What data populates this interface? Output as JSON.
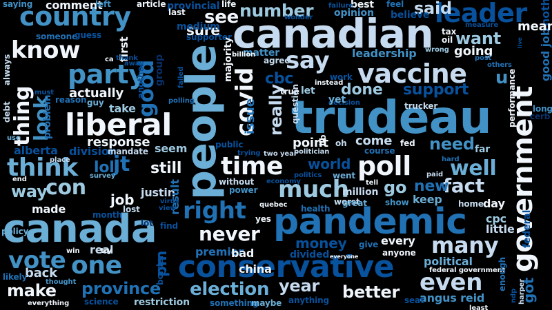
{
  "palette": {
    "background": "#000000",
    "c1": "#f0f6fc",
    "c2": "#c6dbef",
    "c3": "#9ecae1",
    "c4": "#6baed6",
    "c5": "#4292c6",
    "c6": "#2171b5",
    "c7": "#08519c",
    "c8": "#08306b"
  },
  "words": [
    {
      "text": "trudeau",
      "color": "c5",
      "orientation": "horizontal"
    },
    {
      "text": "people",
      "color": "c4",
      "orientation": "vertical"
    },
    {
      "text": "canadian",
      "color": "c2",
      "orientation": "horizontal"
    },
    {
      "text": "canada",
      "color": "c4",
      "orientation": "horizontal"
    },
    {
      "text": "pandemic",
      "color": "c6",
      "orientation": "horizontal"
    },
    {
      "text": "government",
      "color": "c1",
      "orientation": "vertical"
    },
    {
      "text": "conservative",
      "color": "c7",
      "orientation": "horizontal"
    },
    {
      "text": "liberal",
      "color": "c1",
      "orientation": "horizontal"
    },
    {
      "text": "country",
      "color": "c5",
      "orientation": "horizontal"
    },
    {
      "text": "vaccine",
      "color": "c2",
      "orientation": "horizontal"
    },
    {
      "text": "leader",
      "color": "c7",
      "orientation": "horizontal"
    },
    {
      "text": "party",
      "color": "c5",
      "orientation": "horizontal"
    },
    {
      "text": "know",
      "color": "c1",
      "orientation": "horizontal"
    },
    {
      "text": "poll",
      "color": "c1",
      "orientation": "horizontal"
    },
    {
      "text": "think",
      "color": "c4",
      "orientation": "horizontal"
    },
    {
      "text": "covid",
      "color": "c1",
      "orientation": "vertical"
    },
    {
      "text": "time",
      "color": "c1",
      "orientation": "horizontal"
    },
    {
      "text": "much",
      "color": "c3",
      "orientation": "horizontal"
    },
    {
      "text": "right",
      "color": "c6",
      "orientation": "horizontal"
    },
    {
      "text": "one",
      "color": "c5",
      "orientation": "horizontal"
    },
    {
      "text": "many",
      "color": "c2",
      "orientation": "horizontal"
    },
    {
      "text": "even",
      "color": "c2",
      "orientation": "horizontal"
    },
    {
      "text": "say",
      "color": "c2",
      "orientation": "horizontal"
    },
    {
      "text": "well",
      "color": "c4",
      "orientation": "horizontal"
    },
    {
      "text": "vote",
      "color": "c5",
      "orientation": "horizontal"
    },
    {
      "text": "good",
      "color": "c6",
      "orientation": "vertical"
    },
    {
      "text": "thing",
      "color": "c1",
      "orientation": "vertical"
    },
    {
      "text": "never",
      "color": "c1",
      "orientation": "horizontal"
    },
    {
      "text": "number",
      "color": "c3",
      "orientation": "horizontal"
    },
    {
      "text": "fact",
      "color": "c2",
      "orientation": "horizontal"
    },
    {
      "text": "con",
      "color": "c3",
      "orientation": "horizontal"
    },
    {
      "text": "jt",
      "color": "c6",
      "orientation": "horizontal"
    },
    {
      "text": "way",
      "color": "c3",
      "orientation": "horizontal"
    },
    {
      "text": "look",
      "color": "c5",
      "orientation": "vertical"
    },
    {
      "text": "election",
      "color": "c4",
      "orientation": "horizontal"
    },
    {
      "text": "province",
      "color": "c6",
      "orientation": "horizontal"
    },
    {
      "text": "year",
      "color": "c2",
      "orientation": "horizontal"
    },
    {
      "text": "better",
      "color": "c1",
      "orientation": "horizontal"
    },
    {
      "text": "make",
      "color": "c1",
      "orientation": "horizontal"
    },
    {
      "text": "want",
      "color": "c3",
      "orientation": "horizontal"
    },
    {
      "text": "u",
      "color": "c5",
      "orientation": "horizontal"
    },
    {
      "text": "support",
      "color": "c7",
      "orientation": "horizontal"
    },
    {
      "text": "need",
      "color": "c5",
      "orientation": "horizontal"
    },
    {
      "text": "really",
      "color": "c2",
      "orientation": "vertical"
    },
    {
      "text": "done",
      "color": "c3",
      "orientation": "horizontal"
    },
    {
      "text": "see",
      "color": "c1",
      "orientation": "horizontal"
    },
    {
      "text": "said",
      "color": "c2",
      "orientation": "horizontal"
    },
    {
      "text": "go",
      "color": "c3",
      "orientation": "horizontal"
    },
    {
      "text": "new",
      "color": "c6",
      "orientation": "horizontal"
    },
    {
      "text": "world",
      "color": "c7",
      "orientation": "horizontal"
    },
    {
      "text": "cbc",
      "color": "c7",
      "orientation": "horizontal"
    },
    {
      "text": "lol",
      "color": "c6",
      "orientation": "horizontal"
    },
    {
      "text": "job",
      "color": "c1",
      "orientation": "horizontal"
    },
    {
      "text": "still",
      "color": "c1",
      "orientation": "horizontal"
    },
    {
      "text": "pm",
      "color": "c7",
      "orientation": "vertical"
    },
    {
      "text": "money",
      "color": "c7",
      "orientation": "horizontal"
    },
    {
      "text": "back",
      "color": "c2",
      "orientation": "horizontal"
    },
    {
      "text": "got",
      "color": "c6",
      "orientation": "vertical"
    },
    {
      "text": "good job",
      "color": "c6",
      "orientation": "vertical"
    },
    {
      "text": "nothing",
      "color": "c7",
      "orientation": "vertical"
    },
    {
      "text": "mean",
      "color": "c1",
      "orientation": "horizontal"
    },
    {
      "text": "sure",
      "color": "c1",
      "orientation": "horizontal"
    },
    {
      "text": "come",
      "color": "c2",
      "orientation": "horizontal"
    },
    {
      "text": "point",
      "color": "c1",
      "orientation": "horizontal"
    },
    {
      "text": "response",
      "color": "c1",
      "orientation": "horizontal"
    },
    {
      "text": "actually",
      "color": "c1",
      "orientation": "horizontal"
    },
    {
      "text": "going",
      "color": "c1",
      "orientation": "horizontal"
    },
    {
      "text": "leadership",
      "color": "c5",
      "orientation": "horizontal"
    },
    {
      "text": "issue",
      "color": "c6",
      "orientation": "vertical"
    },
    {
      "text": "keep",
      "color": "c4",
      "orientation": "horizontal"
    },
    {
      "text": "every",
      "color": "c1",
      "orientation": "horizontal"
    },
    {
      "text": "political",
      "color": "c4",
      "orientation": "horizontal"
    },
    {
      "text": "angus reid",
      "color": "c5",
      "orientation": "horizontal"
    },
    {
      "text": "cpc",
      "color": "c3",
      "orientation": "horizontal"
    },
    {
      "text": "little",
      "color": "c2",
      "orientation": "horizontal"
    },
    {
      "text": "federal",
      "color": "c7",
      "orientation": "vertical"
    },
    {
      "text": "day",
      "color": "c1",
      "orientation": "horizontal"
    },
    {
      "text": "far",
      "color": "c3",
      "orientation": "horizontal"
    },
    {
      "text": "long",
      "color": "c5",
      "orientation": "horizontal"
    },
    {
      "text": "alberta",
      "color": "c7",
      "orientation": "horizontal"
    },
    {
      "text": "justin",
      "color": "c2",
      "orientation": "horizontal"
    },
    {
      "text": "made",
      "color": "c1",
      "orientation": "horizontal"
    },
    {
      "text": "take",
      "color": "c3",
      "orientation": "horizontal"
    },
    {
      "text": "seem",
      "color": "c3",
      "orientation": "horizontal"
    },
    {
      "text": "result",
      "color": "c6",
      "orientation": "vertical"
    },
    {
      "text": "without",
      "color": "c2",
      "orientation": "horizontal"
    },
    {
      "text": "million",
      "color": "c2",
      "orientation": "horizontal"
    },
    {
      "text": "worst",
      "color": "c2",
      "orientation": "horizontal"
    },
    {
      "text": "went",
      "color": "c4",
      "orientation": "horizontal"
    },
    {
      "text": "show",
      "color": "c5",
      "orientation": "horizontal"
    },
    {
      "text": "great",
      "color": "c4",
      "orientation": "horizontal"
    },
    {
      "text": "division",
      "color": "c7",
      "orientation": "horizontal"
    },
    {
      "text": "real",
      "color": "c2",
      "orientation": "horizontal"
    },
    {
      "text": "premier",
      "color": "c6",
      "orientation": "horizontal"
    },
    {
      "text": "bad",
      "color": "c1",
      "orientation": "horizontal"
    },
    {
      "text": "china",
      "color": "c1",
      "orientation": "horizontal"
    },
    {
      "text": "divided",
      "color": "c7",
      "orientation": "horizontal"
    },
    {
      "text": "give",
      "color": "c6",
      "orientation": "horizontal"
    },
    {
      "text": "anyone",
      "color": "c1",
      "orientation": "horizontal"
    },
    {
      "text": "restriction",
      "color": "c3",
      "orientation": "horizontal"
    },
    {
      "text": "science",
      "color": "c7",
      "orientation": "horizontal"
    },
    {
      "text": "something",
      "color": "c6",
      "orientation": "horizontal"
    },
    {
      "text": "maybe",
      "color": "c4",
      "orientation": "horizontal"
    },
    {
      "text": "anything",
      "color": "c7",
      "orientation": "horizontal"
    },
    {
      "text": "seat",
      "color": "c7",
      "orientation": "horizontal"
    },
    {
      "text": "opinion",
      "color": "c5",
      "orientation": "horizontal"
    },
    {
      "text": "best",
      "color": "c1",
      "orientation": "horizontal"
    },
    {
      "text": "feel",
      "color": "c6",
      "orientation": "horizontal"
    },
    {
      "text": "believe",
      "color": "c7",
      "orientation": "horizontal"
    },
    {
      "text": "comment",
      "color": "c1",
      "orientation": "horizontal"
    },
    {
      "text": "saying",
      "color": "c5",
      "orientation": "horizontal"
    },
    {
      "text": "left",
      "color": "c5",
      "orientation": "horizontal"
    },
    {
      "text": "article",
      "color": "c1",
      "orientation": "horizontal"
    },
    {
      "text": "provincial",
      "color": "c7",
      "orientation": "horizontal"
    },
    {
      "text": "last",
      "color": "c1",
      "orientation": "horizontal"
    },
    {
      "text": "life",
      "color": "c1",
      "orientation": "horizontal"
    },
    {
      "text": "someone",
      "color": "c6",
      "orientation": "horizontal"
    },
    {
      "text": "guess",
      "color": "c7",
      "orientation": "horizontal"
    },
    {
      "text": "first",
      "color": "c1",
      "orientation": "vertical"
    },
    {
      "text": "medium",
      "color": "c7",
      "orientation": "horizontal"
    },
    {
      "text": "supporter",
      "color": "c7",
      "orientation": "horizontal"
    },
    {
      "text": "matter",
      "color": "c5",
      "orientation": "horizontal"
    },
    {
      "text": "agree",
      "color": "c2",
      "orientation": "horizontal"
    },
    {
      "text": "majority",
      "color": "c1",
      "orientation": "vertical"
    },
    {
      "text": "billion",
      "color": "c1",
      "orientation": "horizontal"
    },
    {
      "text": "tax",
      "color": "c1",
      "orientation": "horizontal"
    },
    {
      "text": "oil",
      "color": "c1",
      "orientation": "horizontal"
    },
    {
      "text": "wrong",
      "color": "c3",
      "orientation": "horizontal"
    },
    {
      "text": "wonder",
      "color": "c7",
      "orientation": "horizontal"
    },
    {
      "text": "measure",
      "color": "c7",
      "orientation": "horizontal"
    },
    {
      "text": "post",
      "color": "c6",
      "orientation": "horizontal"
    },
    {
      "text": "others",
      "color": "c6",
      "orientation": "horizontal"
    },
    {
      "text": "always",
      "color": "c2",
      "orientation": "vertical"
    },
    {
      "text": "must",
      "color": "c7",
      "orientation": "horizontal"
    },
    {
      "text": "reason",
      "color": "c6",
      "orientation": "horizontal"
    },
    {
      "text": "guy",
      "color": "c4",
      "orientation": "horizontal"
    },
    {
      "text": "problem",
      "color": "c6",
      "orientation": "vertical"
    },
    {
      "text": "debt",
      "color": "c2",
      "orientation": "vertical"
    },
    {
      "text": "use",
      "color": "c4",
      "orientation": "horizontal"
    },
    {
      "text": "place",
      "color": "c2",
      "orientation": "horizontal"
    },
    {
      "text": "end",
      "color": "c1",
      "orientation": "horizontal"
    },
    {
      "text": "policy",
      "color": "c4",
      "orientation": "horizontal"
    },
    {
      "text": "mandate",
      "color": "c2",
      "orientation": "horizontal"
    },
    {
      "text": "survey",
      "color": "c4",
      "orientation": "horizontal"
    },
    {
      "text": "another",
      "color": "c7",
      "orientation": "vertical"
    },
    {
      "text": "group",
      "color": "c8",
      "orientation": "vertical"
    },
    {
      "text": "failed",
      "color": "c7",
      "orientation": "vertical"
    },
    {
      "text": "polling",
      "color": "c6",
      "orientation": "horizontal"
    },
    {
      "text": "thank",
      "color": "c7",
      "orientation": "horizontal"
    },
    {
      "text": "away",
      "color": "c7",
      "orientation": "horizontal"
    },
    {
      "text": "ca",
      "color": "c1",
      "orientation": "horizontal"
    },
    {
      "text": "true",
      "color": "c1",
      "orientation": "horizontal"
    },
    {
      "text": "instead",
      "color": "c1",
      "orientation": "horizontal"
    },
    {
      "text": "decision",
      "color": "c7",
      "orientation": "horizontal"
    },
    {
      "text": "work",
      "color": "c7",
      "orientation": "horizontal"
    },
    {
      "text": "let",
      "color": "c3",
      "orientation": "horizontal"
    },
    {
      "text": "yet",
      "color": "c4",
      "orientation": "horizontal"
    },
    {
      "text": "question",
      "color": "c2",
      "orientation": "vertical"
    },
    {
      "text": "trucker",
      "color": "c2",
      "orientation": "horizontal"
    },
    {
      "text": "performance",
      "color": "c1",
      "orientation": "vertical"
    },
    {
      "text": "cerb",
      "color": "c8",
      "orientation": "horizontal"
    },
    {
      "text": "fed",
      "color": "c1",
      "orientation": "horizontal"
    },
    {
      "text": "lib",
      "color": "c1",
      "orientation": "vertical"
    },
    {
      "text": "oh",
      "color": "c2",
      "orientation": "horizontal"
    },
    {
      "text": "public",
      "color": "c7",
      "orientation": "horizontal"
    },
    {
      "text": "trying",
      "color": "c7",
      "orientation": "horizontal"
    },
    {
      "text": "two year",
      "color": "c2",
      "orientation": "horizontal"
    },
    {
      "text": "politician",
      "color": "c2",
      "orientation": "horizontal"
    },
    {
      "text": "course",
      "color": "c6",
      "orientation": "horizontal"
    },
    {
      "text": "hard",
      "color": "c6",
      "orientation": "horizontal"
    },
    {
      "text": "paid",
      "color": "c2",
      "orientation": "horizontal"
    },
    {
      "text": "economy",
      "color": "c7",
      "orientation": "horizontal"
    },
    {
      "text": "politics",
      "color": "c7",
      "orientation": "horizontal"
    },
    {
      "text": "tell",
      "color": "c1",
      "orientation": "horizontal"
    },
    {
      "text": "power",
      "color": "c5",
      "orientation": "horizontal"
    },
    {
      "text": "virus",
      "color": "c7",
      "orientation": "horizontal"
    },
    {
      "text": "view",
      "color": "c7",
      "orientation": "horizontal"
    },
    {
      "text": "month",
      "color": "c7",
      "orientation": "horizontal"
    },
    {
      "text": "lost",
      "color": "c2",
      "orientation": "horizontal"
    },
    {
      "text": "lot",
      "color": "c8",
      "orientation": "horizontal"
    },
    {
      "text": "find",
      "color": "c7",
      "orientation": "horizontal"
    },
    {
      "text": "quebec",
      "color": "c1",
      "orientation": "horizontal"
    },
    {
      "text": "health",
      "color": "c6",
      "orientation": "horizontal"
    },
    {
      "text": "home",
      "color": "c2",
      "orientation": "horizontal"
    },
    {
      "text": "yes",
      "color": "c1",
      "orientation": "horizontal"
    },
    {
      "text": "win",
      "color": "c1",
      "orientation": "horizontal"
    },
    {
      "text": "try",
      "color": "c1",
      "orientation": "horizontal"
    },
    {
      "text": "everyone",
      "color": "c1",
      "orientation": "horizontal"
    },
    {
      "text": "border",
      "color": "c7",
      "orientation": "vertical"
    },
    {
      "text": "likely",
      "color": "c6",
      "orientation": "horizontal"
    },
    {
      "text": "thought",
      "color": "c5",
      "orientation": "horizontal"
    },
    {
      "text": "everything",
      "color": "c1",
      "orientation": "horizontal"
    },
    {
      "text": "federal government",
      "color": "c1",
      "orientation": "horizontal"
    },
    {
      "text": "least",
      "color": "c1",
      "orientation": "horizontal"
    },
    {
      "text": "enough",
      "color": "c6",
      "orientation": "vertical"
    },
    {
      "text": "ndp",
      "color": "c7",
      "orientation": "vertical"
    },
    {
      "text": "harper",
      "color": "c2",
      "orientation": "vertical"
    },
    {
      "text": "failure",
      "color": "c7",
      "orientation": "horizontal"
    },
    {
      "text": "live",
      "color": "c7",
      "orientation": "vertical"
    }
  ]
}
